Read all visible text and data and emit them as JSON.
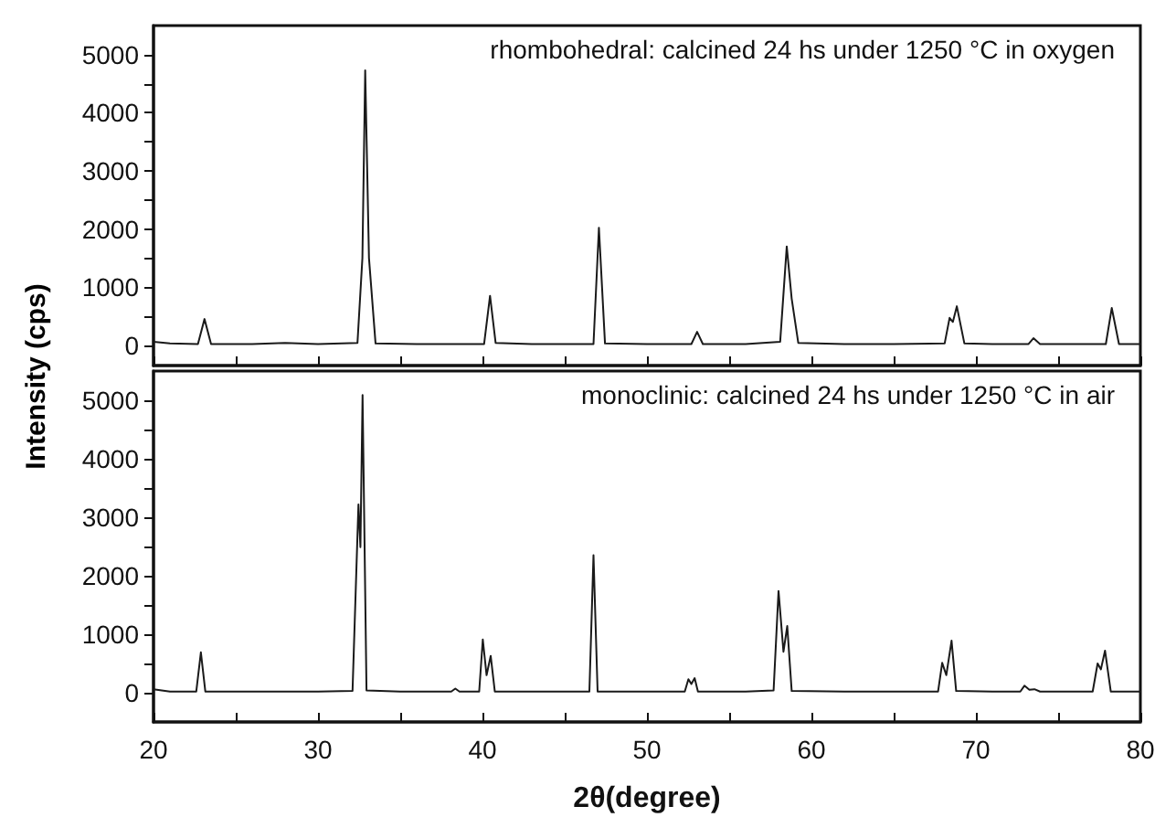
{
  "chart_data": [
    {
      "type": "line",
      "ylabel": "Intensity (cps)",
      "annotations": [
        "rhombohedral: calcined 24 hs under 1250 °C in oxygen"
      ],
      "xlim": [
        20,
        80
      ],
      "xticks": [
        {
          "value": 20,
          "label": null
        },
        {
          "value": 25,
          "label": null
        },
        {
          "value": 30,
          "label": null
        },
        {
          "value": 35,
          "label": null
        },
        {
          "value": 40,
          "label": null
        },
        {
          "value": 45,
          "label": null
        },
        {
          "value": 50,
          "label": null
        },
        {
          "value": 55,
          "label": null
        },
        {
          "value": 60,
          "label": null
        },
        {
          "value": 65,
          "label": null
        },
        {
          "value": 70,
          "label": null
        },
        {
          "value": 75,
          "label": null
        },
        {
          "value": 80,
          "label": null
        }
      ],
      "ylim": [
        -350,
        5500
      ],
      "yticks": [
        0,
        {
          "value": 500,
          "label": null
        },
        1000,
        {
          "value": 1500,
          "label": null
        },
        2000,
        {
          "value": 2500,
          "label": null
        },
        3000,
        {
          "value": 3500,
          "label": null
        },
        4000,
        {
          "value": 4500,
          "label": null
        },
        5000
      ],
      "tick_labels": "y",
      "grid": false,
      "marker": "none",
      "line_style": "solid",
      "series": [
        {
          "color": "#1a1a1a",
          "x": [
            20,
            21,
            22.7,
            23.1,
            23.5,
            26,
            28,
            30,
            32.4,
            32.7,
            32.87,
            33.1,
            33.5,
            36,
            38,
            40.1,
            40.46,
            40.8,
            43,
            45,
            46.75,
            47.08,
            47.45,
            50,
            52.7,
            53.05,
            53.4,
            56,
            58.1,
            58.5,
            58.8,
            59.2,
            62,
            65,
            68.1,
            68.4,
            68.6,
            68.84,
            69.3,
            71,
            73.2,
            73.5,
            73.9,
            76,
            77.9,
            78.26,
            78.7,
            80
          ],
          "values": [
            60,
            30,
            20,
            450,
            20,
            20,
            40,
            20,
            40,
            1500,
            4730,
            1500,
            30,
            20,
            20,
            20,
            850,
            40,
            20,
            20,
            20,
            2020,
            30,
            20,
            20,
            230,
            20,
            20,
            60,
            1700,
            800,
            40,
            20,
            20,
            30,
            470,
            400,
            670,
            30,
            20,
            20,
            120,
            20,
            20,
            20,
            640,
            20,
            20
          ]
        }
      ]
    },
    {
      "type": "line",
      "xlabel": "2θ(degree)",
      "annotations": [
        "monoclinic: calcined 24 hs under 1250 °C in air"
      ],
      "xlim": [
        20,
        80
      ],
      "xticks": [
        20,
        {
          "value": 25,
          "label": null
        },
        30,
        {
          "value": 35,
          "label": null
        },
        40,
        {
          "value": 45,
          "label": null
        },
        50,
        {
          "value": 55,
          "label": null
        },
        60,
        {
          "value": 65,
          "label": null
        },
        70,
        {
          "value": 75,
          "label": null
        },
        80
      ],
      "ylim": [
        -500,
        5500
      ],
      "yticks": [
        0,
        {
          "value": 500,
          "label": null
        },
        1000,
        {
          "value": 1500,
          "label": null
        },
        2000,
        {
          "value": 2500,
          "label": null
        },
        3000,
        {
          "value": 3500,
          "label": null
        },
        4000,
        {
          "value": 4500,
          "label": null
        },
        5000
      ],
      "grid": false,
      "marker": "none",
      "line_style": "solid",
      "series": [
        {
          "color": "#1a1a1a",
          "x": [
            20,
            21,
            22.6,
            22.88,
            23.15,
            26,
            30,
            32.1,
            32.46,
            32.58,
            32.71,
            32.95,
            35,
            38.1,
            38.35,
            38.6,
            39.8,
            40.02,
            40.25,
            40.5,
            40.75,
            43,
            46.5,
            46.75,
            47.0,
            50,
            52.3,
            52.52,
            52.7,
            52.9,
            53.1,
            56,
            57.7,
            58.0,
            58.3,
            58.53,
            58.8,
            62,
            67.7,
            67.95,
            68.2,
            68.52,
            68.8,
            71,
            72.7,
            72.95,
            73.25,
            73.56,
            73.9,
            76,
            77.1,
            77.4,
            77.6,
            77.85,
            78.2,
            80
          ],
          "values": [
            60,
            20,
            20,
            690,
            20,
            20,
            20,
            30,
            3220,
            2490,
            5090,
            40,
            20,
            20,
            70,
            20,
            20,
            910,
            300,
            630,
            20,
            20,
            20,
            2350,
            20,
            20,
            20,
            230,
            150,
            250,
            20,
            20,
            40,
            1740,
            700,
            1140,
            30,
            20,
            20,
            510,
            300,
            890,
            30,
            20,
            20,
            120,
            50,
            60,
            20,
            20,
            20,
            500,
            400,
            720,
            20,
            20
          ]
        }
      ]
    }
  ]
}
